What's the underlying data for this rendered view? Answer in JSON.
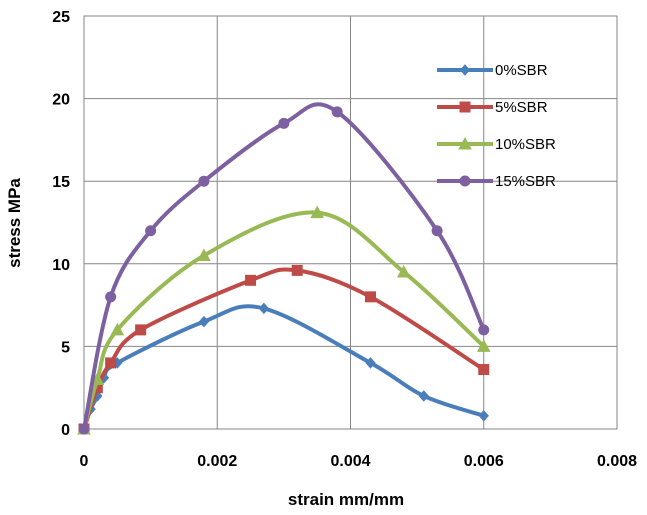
{
  "chart_data": {
    "type": "line",
    "xlabel": "strain mm/mm",
    "ylabel": "stress MPa",
    "xlim": [
      0,
      0.008
    ],
    "ylim": [
      0,
      25
    ],
    "xticks": [
      "0",
      "0.002",
      "0.004",
      "0.006",
      "0.008"
    ],
    "yticks": [
      "0",
      "5",
      "10",
      "15",
      "20",
      "25"
    ],
    "grid": true,
    "legend_position": "right",
    "series": [
      {
        "name": "0%SBR",
        "color": "#4a7ebb",
        "marker": "diamond",
        "x": [
          0,
          0.0001,
          0.0002,
          0.0003,
          0.0005,
          0.0018,
          0.0027,
          0.0043,
          0.0051,
          0.006
        ],
        "y": [
          0,
          1.2,
          2.0,
          3.1,
          4.0,
          6.5,
          7.3,
          4.0,
          2.0,
          0.8
        ]
      },
      {
        "name": "5%SBR",
        "color": "#be4b48",
        "marker": "square",
        "x": [
          0,
          0.0002,
          0.0004,
          0.00085,
          0.0025,
          0.0032,
          0.0043,
          0.006
        ],
        "y": [
          0,
          2.5,
          4.0,
          6.0,
          9.0,
          9.6,
          8.0,
          3.6
        ]
      },
      {
        "name": "10%SBR",
        "color": "#98b954",
        "marker": "triangle",
        "x": [
          0,
          0.0002,
          0.0005,
          0.0018,
          0.0035,
          0.0048,
          0.006
        ],
        "y": [
          0,
          3.0,
          6.0,
          10.5,
          13.1,
          9.5,
          5.0
        ]
      },
      {
        "name": "15%SBR",
        "color": "#7d60a0",
        "marker": "circle",
        "x": [
          0,
          0.0004,
          0.001,
          0.0018,
          0.003,
          0.0038,
          0.0053,
          0.006
        ],
        "y": [
          0,
          8.0,
          12.0,
          15.0,
          18.5,
          19.2,
          12.0,
          6.0
        ]
      }
    ]
  }
}
